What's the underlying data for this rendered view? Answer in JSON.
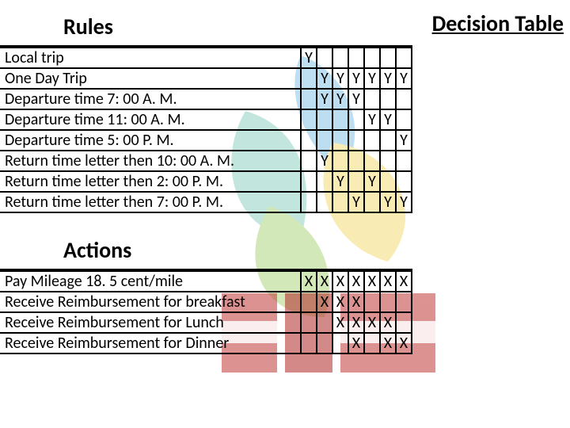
{
  "title": "Decision Table",
  "rules_header": "Rules",
  "actions_header": "Actions",
  "num_columns": 7,
  "rules": [
    {
      "label": "Local trip",
      "cells": [
        "Y",
        "",
        "",
        "",
        "",
        "",
        ""
      ]
    },
    {
      "label": "One Day Trip",
      "cells": [
        "",
        "Y",
        "Y",
        "Y",
        "Y",
        "Y",
        "Y"
      ]
    },
    {
      "label": "Departure time 7: 00 A. M.",
      "cells": [
        "",
        "Y",
        "Y",
        "Y",
        "",
        "",
        ""
      ]
    },
    {
      "label": "Departure time 11: 00 A. M.",
      "cells": [
        "",
        "",
        "",
        "",
        "Y",
        "Y",
        ""
      ]
    },
    {
      "label": "Departure time 5: 00 P. M.",
      "cells": [
        "",
        "",
        "",
        "",
        "",
        "",
        "Y"
      ]
    },
    {
      "label": "Return time letter then 10: 00 A. M.",
      "cells": [
        "",
        "Y",
        "",
        "",
        "",
        "",
        ""
      ]
    },
    {
      "label": "Return time letter then 2: 00 P. M.",
      "cells": [
        "",
        "",
        "Y",
        "",
        "Y",
        "",
        ""
      ]
    },
    {
      "label": "Return time letter then 7: 00 P. M.",
      "cells": [
        "",
        "",
        "",
        "Y",
        "",
        "Y",
        "Y"
      ]
    }
  ],
  "actions": [
    {
      "label": "Pay Mileage 18. 5 cent/mile",
      "cells": [
        "X",
        "X",
        "X",
        "X",
        "X",
        "X",
        "X"
      ]
    },
    {
      "label": "Receive Reimbursement for breakfast",
      "cells": [
        "",
        "X",
        "X",
        "X",
        "",
        "",
        ""
      ]
    },
    {
      "label": "Receive Reimbursement for Lunch",
      "cells": [
        "",
        "",
        "X",
        "X",
        "X",
        "X",
        ""
      ]
    },
    {
      "label": "Receive Reimbursement for Dinner",
      "cells": [
        "",
        "",
        "",
        "X",
        "",
        "X",
        "X"
      ]
    }
  ],
  "logo_colors": {
    "blue": "#6fb7e0",
    "teal": "#79c9b8",
    "yellow": "#f0d35b",
    "green": "#9fce63",
    "red1": "#c23a3a",
    "red2": "#b22929"
  }
}
